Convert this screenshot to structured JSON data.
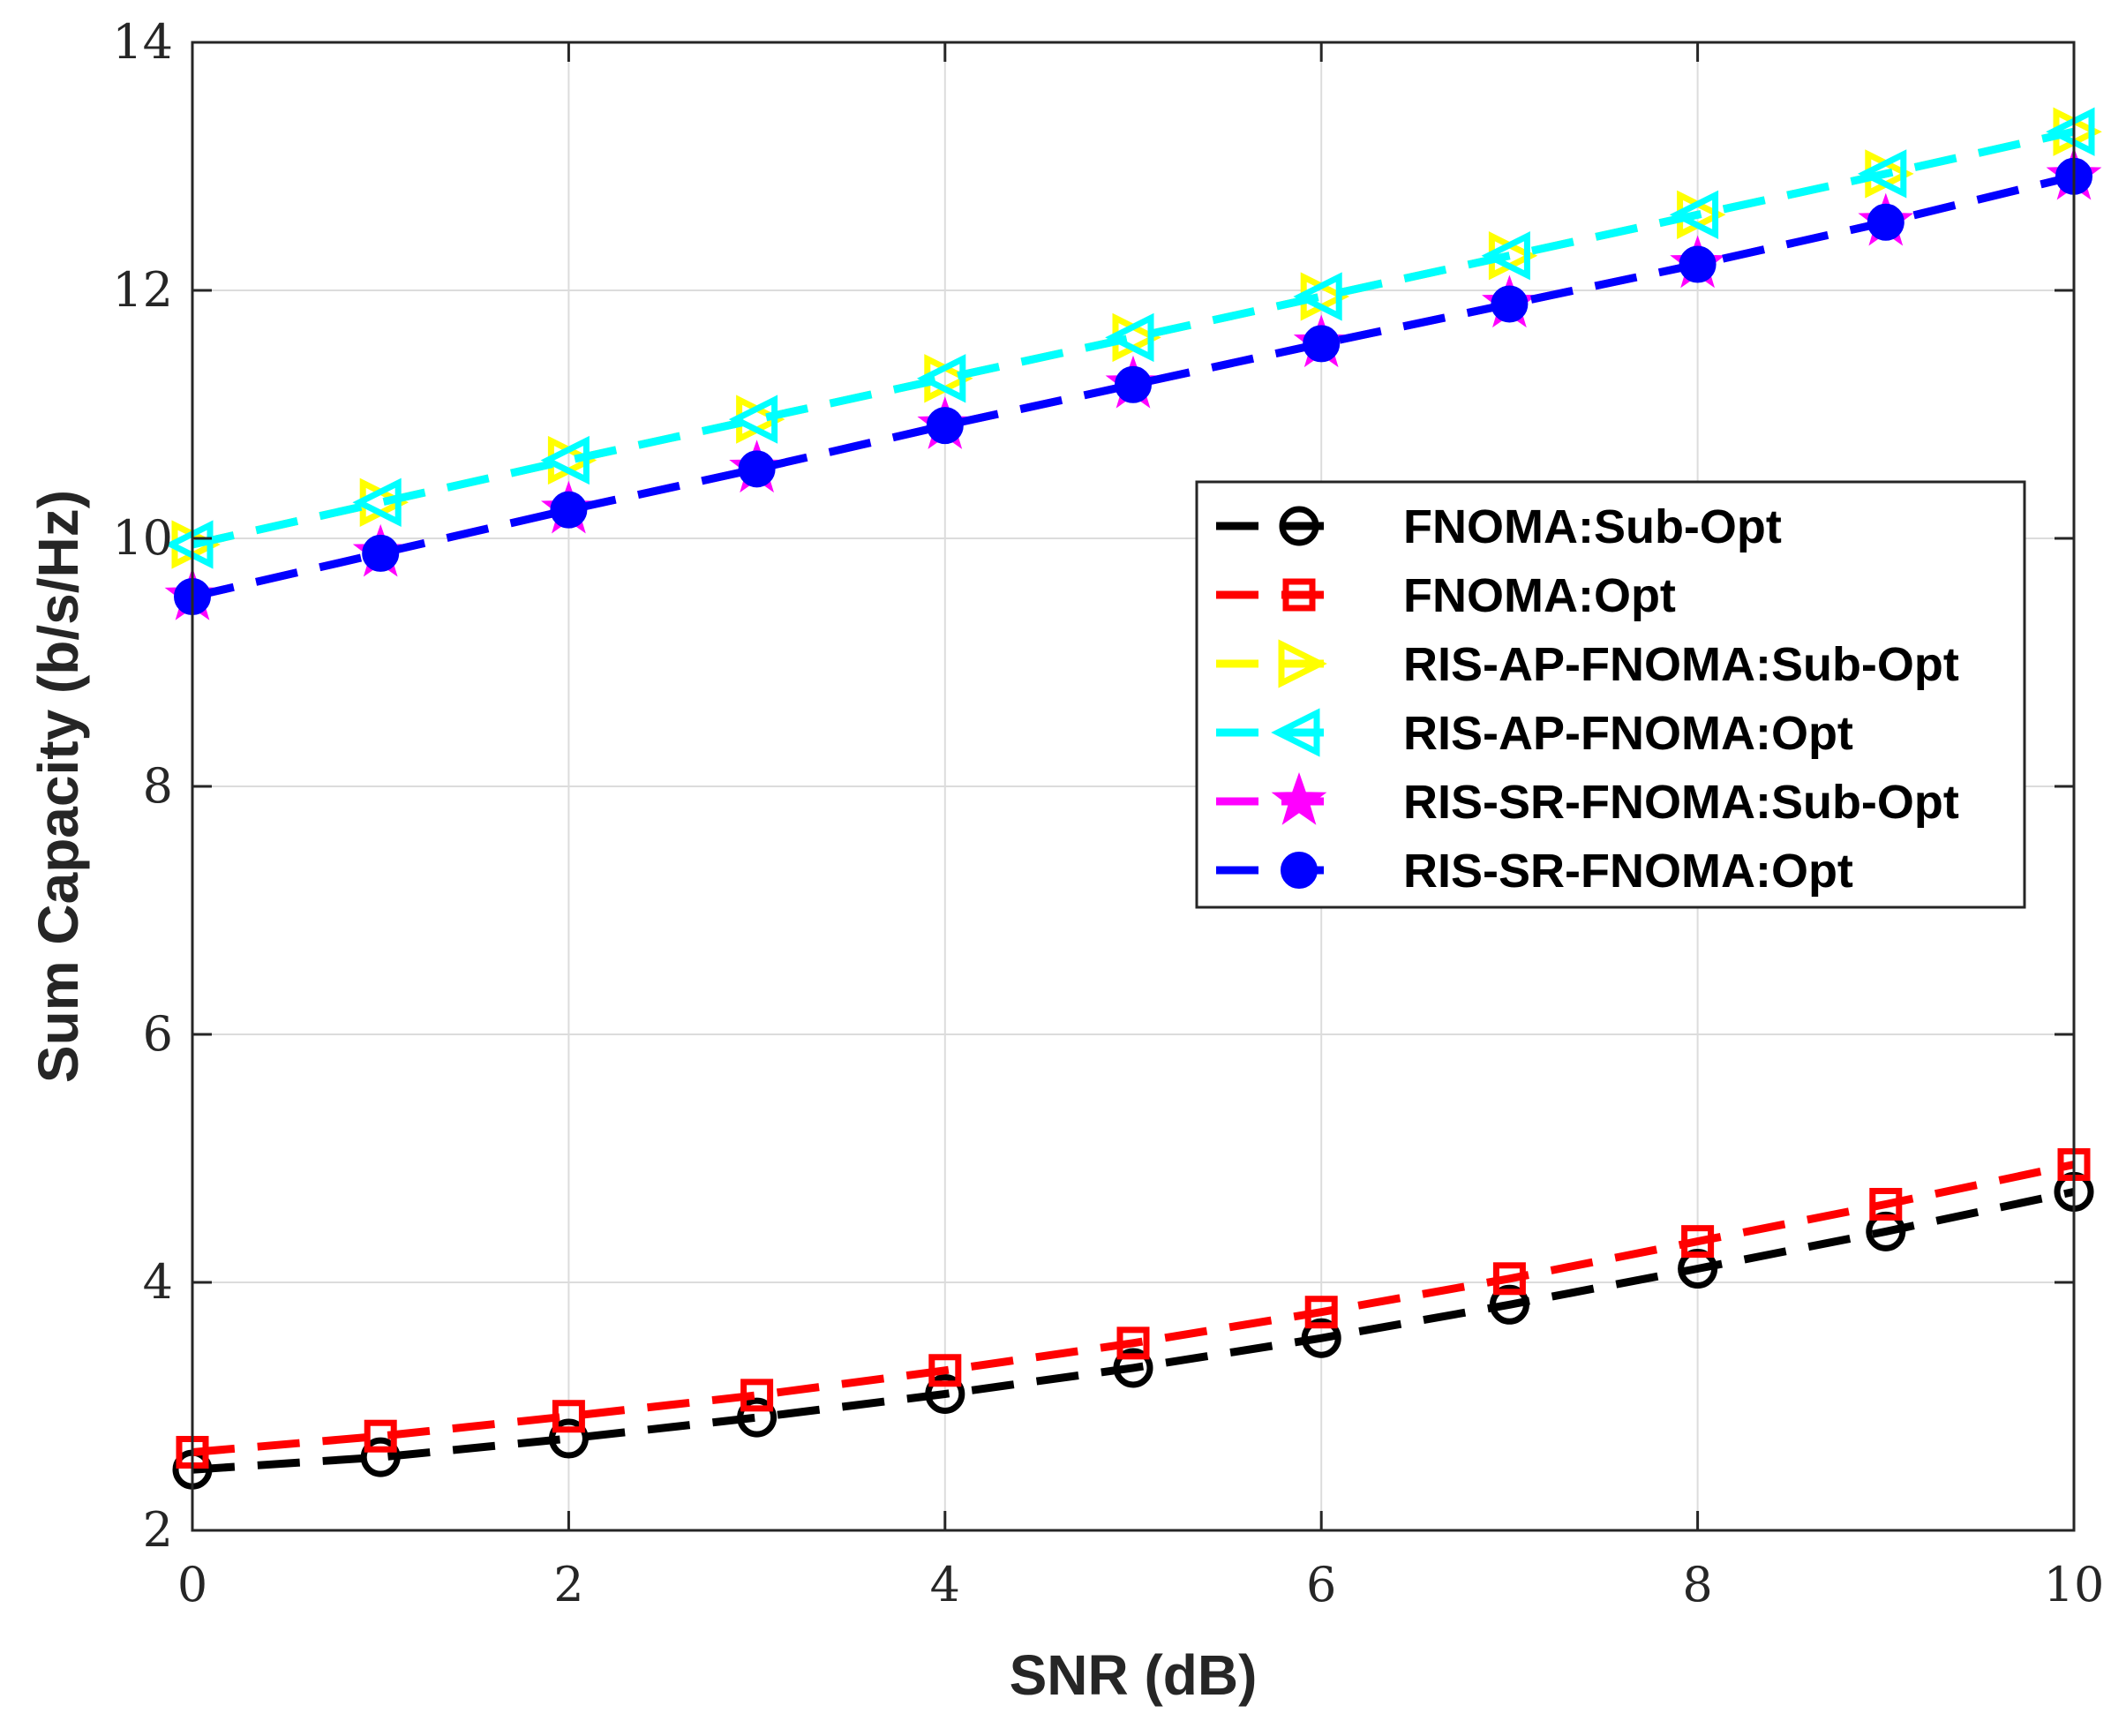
{
  "chart_data": {
    "type": "line",
    "title": "",
    "xlabel": "SNR (dB)",
    "ylabel": "Sum Capacity (b/s/Hz)",
    "xlim": [
      0,
      10
    ],
    "ylim": [
      2,
      14
    ],
    "xticks": [
      "0",
      "2",
      "4",
      "6",
      "8",
      "10"
    ],
    "yticks": [
      "2",
      "4",
      "6",
      "8",
      "10",
      "12",
      "14"
    ],
    "grid": true,
    "legend_position": "upper-right",
    "x": [
      0,
      1,
      2,
      3,
      4,
      5,
      6,
      7,
      8,
      9,
      10
    ],
    "series": [
      {
        "name": "FNOMA:Sub-Opt",
        "color": "#000000",
        "marker": "circle",
        "values": [
          2.49,
          2.59,
          2.74,
          2.91,
          3.1,
          3.31,
          3.55,
          3.82,
          4.11,
          4.41,
          4.73
        ]
      },
      {
        "name": "FNOMA:Opt",
        "color": "#ff0000",
        "marker": "square",
        "values": [
          2.63,
          2.76,
          2.92,
          3.09,
          3.29,
          3.51,
          3.76,
          4.03,
          4.33,
          4.63,
          4.95
        ]
      },
      {
        "name": "RIS-AP-FNOMA:Sub-Opt",
        "color": "#ffff00",
        "marker": "triangle-right",
        "values": [
          9.95,
          10.29,
          10.63,
          10.96,
          11.29,
          11.62,
          11.95,
          12.28,
          12.61,
          12.94,
          13.28
        ]
      },
      {
        "name": "RIS-AP-FNOMA:Opt",
        "color": "#00ffff",
        "marker": "triangle-left",
        "values": [
          9.95,
          10.29,
          10.63,
          10.96,
          11.29,
          11.62,
          11.95,
          12.28,
          12.61,
          12.94,
          13.28
        ]
      },
      {
        "name": "RIS-SR-FNOMA:Sub-Opt",
        "color": "#ff00ff",
        "marker": "star",
        "values": [
          9.53,
          9.88,
          10.23,
          10.56,
          10.91,
          11.24,
          11.57,
          11.89,
          12.21,
          12.55,
          12.92
        ]
      },
      {
        "name": "RIS-SR-FNOMA:Opt",
        "color": "#0000ff",
        "marker": "filled-circle",
        "values": [
          9.53,
          9.88,
          10.23,
          10.56,
          10.91,
          11.24,
          11.57,
          11.89,
          12.21,
          12.55,
          12.92
        ]
      }
    ]
  }
}
